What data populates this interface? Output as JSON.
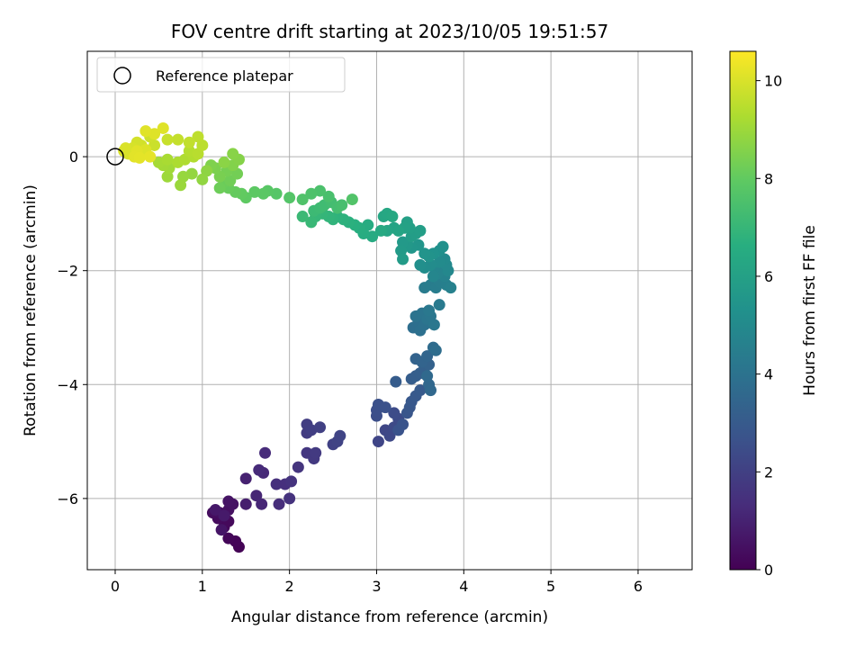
{
  "chart_data": {
    "type": "scatter",
    "title": "FOV centre drift starting at 2023/10/05 19:51:57",
    "xlabel": "Angular distance from reference (arcmin)",
    "ylabel": "Rotation from reference (arcmin)",
    "xlim": [
      -0.32,
      6.62
    ],
    "ylim": [
      -7.25,
      1.85
    ],
    "xticks": [
      0,
      1,
      2,
      3,
      4,
      5,
      6
    ],
    "yticks": [
      -6,
      -4,
      -2,
      0
    ],
    "xtick_labels": [
      "0",
      "1",
      "2",
      "3",
      "4",
      "5",
      "6"
    ],
    "ytick_labels": [
      "−6",
      "−4",
      "−2",
      "0"
    ],
    "grid": true,
    "legend": {
      "position": "top-left",
      "entries": [
        "Reference platepar"
      ]
    },
    "reference_point": {
      "x": 0,
      "y": 0,
      "marker": "open-circle"
    },
    "colorbar": {
      "label": "Hours from first FF file",
      "range": [
        0,
        10.6
      ],
      "ticks": [
        0,
        2,
        4,
        6,
        8,
        10
      ],
      "tick_labels": [
        "0",
        "2",
        "4",
        "6",
        "8",
        "10"
      ],
      "colormap": [
        "#440154",
        "#472d7b",
        "#3b528b",
        "#2c728e",
        "#21918c",
        "#28ae80",
        "#5ec962",
        "#addc30",
        "#fde725"
      ]
    },
    "points": [
      [
        1.42,
        -6.85,
        0.05
      ],
      [
        1.38,
        -6.75,
        0.1
      ],
      [
        1.3,
        -6.7,
        0.15
      ],
      [
        1.25,
        -6.5,
        0.2
      ],
      [
        1.3,
        -6.4,
        0.25
      ],
      [
        1.18,
        -6.35,
        0.3
      ],
      [
        1.12,
        -6.25,
        0.35
      ],
      [
        1.2,
        -6.25,
        0.4
      ],
      [
        1.3,
        -6.2,
        0.45
      ],
      [
        1.35,
        -6.1,
        0.5
      ],
      [
        1.3,
        -6.05,
        0.55
      ],
      [
        1.22,
        -6.55,
        0.6
      ],
      [
        1.15,
        -6.2,
        0.7
      ],
      [
        1.25,
        -6.3,
        0.75
      ],
      [
        1.5,
        -6.1,
        0.9
      ],
      [
        1.5,
        -5.65,
        1.0
      ],
      [
        1.62,
        -5.95,
        1.1
      ],
      [
        1.68,
        -6.1,
        1.15
      ],
      [
        1.7,
        -5.55,
        1.2
      ],
      [
        1.65,
        -5.5,
        1.25
      ],
      [
        1.72,
        -5.2,
        1.3
      ],
      [
        1.88,
        -6.1,
        1.35
      ],
      [
        1.85,
        -5.75,
        1.4
      ],
      [
        1.95,
        -5.75,
        1.45
      ],
      [
        2.0,
        -6.0,
        1.5
      ],
      [
        2.02,
        -5.7,
        1.55
      ],
      [
        2.1,
        -5.45,
        1.6
      ],
      [
        2.2,
        -5.2,
        1.7
      ],
      [
        2.28,
        -5.3,
        1.75
      ],
      [
        2.3,
        -5.2,
        1.8
      ],
      [
        2.2,
        -4.85,
        1.85
      ],
      [
        2.2,
        -4.7,
        1.9
      ],
      [
        2.25,
        -4.8,
        1.95
      ],
      [
        2.35,
        -4.75,
        2.0
      ],
      [
        2.5,
        -5.05,
        2.05
      ],
      [
        2.55,
        -5.0,
        2.1
      ],
      [
        2.58,
        -4.9,
        2.15
      ],
      [
        3.02,
        -5.0,
        2.2
      ],
      [
        3.1,
        -4.8,
        2.25
      ],
      [
        3.15,
        -4.9,
        2.3
      ],
      [
        3.2,
        -4.75,
        2.35
      ],
      [
        3.25,
        -4.6,
        2.4
      ],
      [
        3.2,
        -4.5,
        2.45
      ],
      [
        3.0,
        -4.55,
        2.5
      ],
      [
        3.0,
        -4.45,
        2.55
      ],
      [
        3.02,
        -4.35,
        2.6
      ],
      [
        3.1,
        -4.4,
        2.65
      ],
      [
        3.25,
        -4.8,
        2.7
      ],
      [
        3.3,
        -4.7,
        2.75
      ],
      [
        3.35,
        -4.5,
        2.8
      ],
      [
        3.38,
        -4.4,
        2.85
      ],
      [
        3.4,
        -4.3,
        2.9
      ],
      [
        3.45,
        -4.2,
        2.95
      ],
      [
        3.5,
        -4.1,
        3.0
      ],
      [
        3.22,
        -3.95,
        3.05
      ],
      [
        3.4,
        -3.9,
        3.1
      ],
      [
        3.45,
        -3.85,
        3.15
      ],
      [
        3.5,
        -3.8,
        3.2
      ],
      [
        3.55,
        -3.7,
        3.25
      ],
      [
        3.6,
        -3.65,
        3.3
      ],
      [
        3.45,
        -3.55,
        3.35
      ],
      [
        3.52,
        -3.6,
        3.4
      ],
      [
        3.58,
        -3.5,
        3.45
      ],
      [
        3.6,
        -4.0,
        3.5
      ],
      [
        3.62,
        -4.1,
        3.55
      ],
      [
        3.58,
        -3.85,
        3.6
      ],
      [
        3.65,
        -3.35,
        3.7
      ],
      [
        3.68,
        -3.4,
        3.75
      ],
      [
        3.42,
        -3.0,
        3.8
      ],
      [
        3.48,
        -2.9,
        3.85
      ],
      [
        3.5,
        -3.05,
        3.9
      ],
      [
        3.55,
        -2.95,
        3.95
      ],
      [
        3.45,
        -2.8,
        4.0
      ],
      [
        3.52,
        -2.75,
        4.05
      ],
      [
        3.58,
        -2.85,
        4.1
      ],
      [
        3.62,
        -2.8,
        4.15
      ],
      [
        3.66,
        -2.95,
        4.2
      ],
      [
        3.6,
        -2.7,
        4.25
      ],
      [
        3.72,
        -2.6,
        4.3
      ],
      [
        3.55,
        -2.3,
        4.35
      ],
      [
        3.62,
        -2.25,
        4.4
      ],
      [
        3.68,
        -2.3,
        4.45
      ],
      [
        3.72,
        -2.2,
        4.5
      ],
      [
        3.8,
        -2.25,
        4.55
      ],
      [
        3.85,
        -2.3,
        4.6
      ],
      [
        3.78,
        -2.1,
        4.65
      ],
      [
        3.75,
        -2.0,
        4.7
      ],
      [
        3.7,
        -2.05,
        4.75
      ],
      [
        3.66,
        -1.95,
        4.8
      ],
      [
        3.65,
        -2.1,
        4.85
      ],
      [
        3.82,
        -2.0,
        4.9
      ],
      [
        3.8,
        -1.9,
        4.95
      ],
      [
        3.78,
        -1.8,
        5.0
      ],
      [
        3.72,
        -1.85,
        5.05
      ],
      [
        3.62,
        -1.9,
        5.1
      ],
      [
        3.55,
        -1.95,
        5.15
      ],
      [
        3.5,
        -1.9,
        5.2
      ],
      [
        3.72,
        -1.65,
        5.25
      ],
      [
        3.76,
        -1.58,
        5.3
      ],
      [
        3.65,
        -1.7,
        5.35
      ],
      [
        3.6,
        -1.75,
        5.4
      ],
      [
        3.55,
        -1.7,
        5.45
      ],
      [
        3.48,
        -1.55,
        5.5
      ],
      [
        3.4,
        -1.6,
        5.55
      ],
      [
        3.35,
        -1.55,
        5.6
      ],
      [
        3.3,
        -1.5,
        5.65
      ],
      [
        3.28,
        -1.65,
        5.7
      ],
      [
        3.3,
        -1.8,
        5.75
      ],
      [
        3.4,
        -1.4,
        5.8
      ],
      [
        3.45,
        -1.35,
        5.85
      ],
      [
        3.5,
        -1.3,
        5.9
      ],
      [
        3.38,
        -1.25,
        5.95
      ],
      [
        3.35,
        -1.15,
        6.0
      ],
      [
        3.32,
        -1.25,
        6.05
      ],
      [
        3.2,
        -1.25,
        6.1
      ],
      [
        3.25,
        -1.3,
        6.15
      ],
      [
        3.12,
        -1.3,
        6.2
      ],
      [
        3.08,
        -1.05,
        6.25
      ],
      [
        3.12,
        -1.0,
        6.3
      ],
      [
        3.18,
        -1.05,
        6.35
      ],
      [
        3.05,
        -1.3,
        6.4
      ],
      [
        2.95,
        -1.4,
        6.45
      ],
      [
        2.9,
        -1.2,
        6.5
      ],
      [
        2.85,
        -1.35,
        6.55
      ],
      [
        2.8,
        -1.25,
        6.6
      ],
      [
        2.75,
        -1.2,
        6.65
      ],
      [
        2.68,
        -1.15,
        6.7
      ],
      [
        2.62,
        -1.1,
        6.75
      ],
      [
        2.55,
        -1.05,
        6.8
      ],
      [
        2.5,
        -1.1,
        6.85
      ],
      [
        2.45,
        -1.05,
        6.9
      ],
      [
        2.38,
        -1.0,
        6.95
      ],
      [
        2.3,
        -1.05,
        7.0
      ],
      [
        2.25,
        -1.15,
        7.05
      ],
      [
        2.15,
        -1.05,
        7.1
      ],
      [
        2.28,
        -0.95,
        7.15
      ],
      [
        2.35,
        -0.9,
        7.2
      ],
      [
        2.4,
        -0.85,
        7.25
      ],
      [
        2.48,
        -0.8,
        7.3
      ],
      [
        2.55,
        -0.9,
        7.35
      ],
      [
        2.6,
        -0.85,
        7.4
      ],
      [
        2.45,
        -0.7,
        7.45
      ],
      [
        2.35,
        -0.6,
        7.5
      ],
      [
        2.25,
        -0.65,
        7.55
      ],
      [
        2.15,
        -0.75,
        7.6
      ],
      [
        2.72,
        -0.75,
        7.65
      ],
      [
        2.0,
        -0.72,
        7.7
      ],
      [
        1.85,
        -0.65,
        7.75
      ],
      [
        1.75,
        -0.6,
        7.8
      ],
      [
        1.7,
        -0.65,
        7.85
      ],
      [
        1.6,
        -0.62,
        7.9
      ],
      [
        1.5,
        -0.72,
        7.95
      ],
      [
        1.45,
        -0.65,
        8.0
      ],
      [
        1.38,
        -0.62,
        8.05
      ],
      [
        1.3,
        -0.55,
        8.1
      ],
      [
        1.25,
        -0.45,
        8.15
      ],
      [
        1.2,
        -0.55,
        8.2
      ],
      [
        1.32,
        -0.42,
        8.25
      ],
      [
        1.4,
        -0.3,
        8.3
      ],
      [
        1.28,
        -0.25,
        8.35
      ],
      [
        1.2,
        -0.35,
        8.4
      ],
      [
        1.15,
        -0.2,
        8.45
      ],
      [
        1.1,
        -0.15,
        8.5
      ],
      [
        1.35,
        -0.15,
        8.55
      ],
      [
        1.42,
        -0.05,
        8.6
      ],
      [
        1.35,
        0.05,
        8.65
      ],
      [
        1.25,
        -0.1,
        8.7
      ],
      [
        1.05,
        -0.25,
        8.75
      ],
      [
        1.0,
        -0.4,
        8.8
      ],
      [
        0.88,
        -0.3,
        8.85
      ],
      [
        0.78,
        -0.35,
        8.9
      ],
      [
        0.75,
        -0.5,
        8.95
      ],
      [
        0.6,
        -0.35,
        9.0
      ],
      [
        0.62,
        -0.2,
        9.05
      ],
      [
        0.55,
        -0.15,
        9.1
      ],
      [
        0.5,
        -0.1,
        9.15
      ],
      [
        0.6,
        -0.05,
        9.2
      ],
      [
        0.72,
        -0.1,
        9.25
      ],
      [
        0.8,
        -0.05,
        9.3
      ],
      [
        0.9,
        0.0,
        9.35
      ],
      [
        0.85,
        0.1,
        9.4
      ],
      [
        0.95,
        0.05,
        9.45
      ],
      [
        1.0,
        0.2,
        9.5
      ],
      [
        0.95,
        0.35,
        9.55
      ],
      [
        0.85,
        0.25,
        9.6
      ],
      [
        0.72,
        0.3,
        9.65
      ],
      [
        0.6,
        0.3,
        9.7
      ],
      [
        0.45,
        0.2,
        9.75
      ],
      [
        0.4,
        0.35,
        9.8
      ],
      [
        0.3,
        0.2,
        9.85
      ],
      [
        0.25,
        0.25,
        9.9
      ],
      [
        0.2,
        0.15,
        9.95
      ],
      [
        0.15,
        0.05,
        9.98
      ],
      [
        0.1,
        0.1,
        10.0
      ],
      [
        0.12,
        0.15,
        10.02
      ],
      [
        0.3,
        0.05,
        10.04
      ],
      [
        0.35,
        0.12,
        10.06
      ],
      [
        0.45,
        0.4,
        10.08
      ],
      [
        0.55,
        0.5,
        10.1
      ],
      [
        0.35,
        0.45,
        10.12
      ],
      [
        0.25,
        0.1,
        10.14
      ],
      [
        0.22,
        0.0,
        10.16
      ],
      [
        0.28,
        -0.02,
        10.18
      ],
      [
        0.4,
        0.0,
        10.2
      ]
    ]
  }
}
